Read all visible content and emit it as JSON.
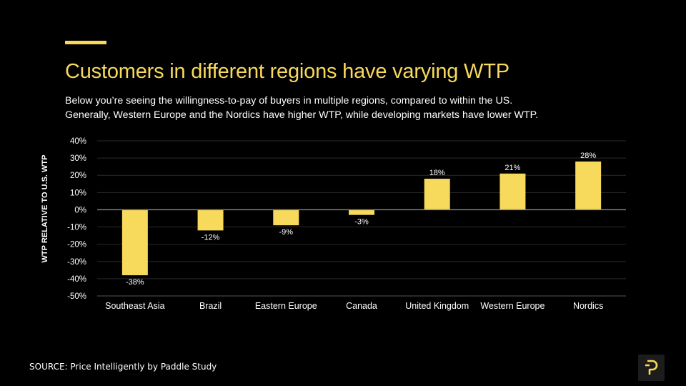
{
  "header": {
    "title": "Customers in different regions have varying WTP",
    "subtitle_line1": "Below you’re seeing the willingness-to-pay of buyers in multiple regions, compared to within the US.",
    "subtitle_line2": "Generally, Western Europe and the Nordics have higher WTP, while developing markets have lower WTP."
  },
  "footer": {
    "source": "SOURCE: Price Intelligently by Paddle Study",
    "logo_icon": "paddle-p-icon"
  },
  "colors": {
    "accent": "#f7d95b",
    "background": "#000000",
    "gridline": "#2a2a2a",
    "zero_line": "#888888"
  },
  "chart_data": {
    "type": "bar",
    "title": "",
    "xlabel": "",
    "ylabel": "WTP RELATIVE TO U.S. WTP",
    "categories": [
      "Southeast Asia",
      "Brazil",
      "Eastern Europe",
      "Canada",
      "United Kingdom",
      "Western Europe",
      "Nordics"
    ],
    "values": [
      -38,
      -12,
      -9,
      -3,
      18,
      21,
      28
    ],
    "value_labels": [
      "-38%",
      "-12%",
      "-9%",
      "-3%",
      "18%",
      "21%",
      "28%"
    ],
    "ylim": [
      -50,
      40
    ],
    "yticks": [
      40,
      30,
      20,
      10,
      0,
      -10,
      -20,
      -30,
      -40,
      -50
    ],
    "ytick_labels": [
      "40%",
      "30%",
      "20%",
      "10%",
      "0%",
      "-10%",
      "-20%",
      "-30%",
      "-40%",
      "-50%"
    ],
    "grid": true,
    "legend": "none"
  }
}
